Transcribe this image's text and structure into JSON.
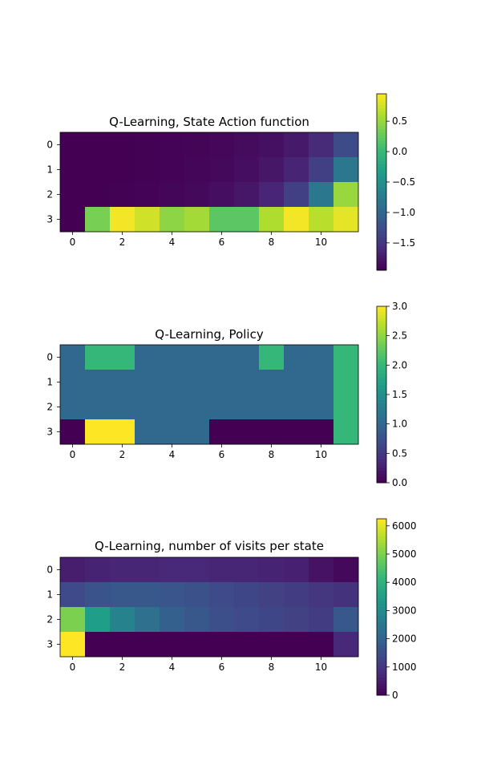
{
  "chart_data": [
    {
      "type": "heatmap",
      "title": "Q-Learning, State Action function",
      "colormap": "viridis",
      "x_ticks": [
        "0",
        "2",
        "4",
        "6",
        "8",
        "10"
      ],
      "y_ticks": [
        "0",
        "1",
        "2",
        "3"
      ],
      "colorbar_ticks": [
        "0.5",
        "0.0",
        "−0.5",
        "−1.0",
        "−1.5"
      ],
      "vmin": -1.95,
      "vmax": 0.95,
      "colorbar_tick_values": [
        0.5,
        0.0,
        -0.5,
        -1.0,
        -1.5
      ],
      "values": [
        [
          -1.95,
          -1.95,
          -1.95,
          -1.94,
          -1.93,
          -1.92,
          -1.9,
          -1.87,
          -1.83,
          -1.75,
          -1.6,
          -1.3
        ],
        [
          -1.95,
          -1.95,
          -1.95,
          -1.94,
          -1.93,
          -1.91,
          -1.88,
          -1.84,
          -1.78,
          -1.66,
          -1.4,
          -0.8
        ],
        [
          -1.95,
          -1.95,
          -1.94,
          -1.93,
          -1.91,
          -1.88,
          -1.84,
          -1.77,
          -1.65,
          -1.4,
          -0.8,
          0.5
        ],
        [
          -1.95,
          0.35,
          0.9,
          0.75,
          0.45,
          0.55,
          0.2,
          0.2,
          0.6,
          0.9,
          0.65,
          0.85
        ]
      ]
    },
    {
      "type": "heatmap",
      "title": "Q-Learning, Policy",
      "colormap": "viridis",
      "x_ticks": [
        "0",
        "2",
        "4",
        "6",
        "8",
        "10"
      ],
      "y_ticks": [
        "0",
        "1",
        "2",
        "3"
      ],
      "colorbar_ticks": [
        "3.0",
        "2.5",
        "2.0",
        "1.5",
        "1.0",
        "0.5",
        "0.0"
      ],
      "vmin": 0,
      "vmax": 3,
      "colorbar_tick_values": [
        3.0,
        2.5,
        2.0,
        1.5,
        1.0,
        0.5,
        0.0
      ],
      "values": [
        [
          1,
          2,
          2,
          1,
          1,
          1,
          1,
          1,
          2,
          1,
          1,
          2
        ],
        [
          1,
          1,
          1,
          1,
          1,
          1,
          1,
          1,
          1,
          1,
          1,
          2
        ],
        [
          1,
          1,
          1,
          1,
          1,
          1,
          1,
          1,
          1,
          1,
          1,
          2
        ],
        [
          0,
          3,
          3,
          1,
          1,
          1,
          0,
          0,
          0,
          0,
          0,
          2
        ]
      ]
    },
    {
      "type": "heatmap",
      "title": "Q-Learning, number of visits per state",
      "colormap": "viridis",
      "x_ticks": [
        "0",
        "2",
        "4",
        "6",
        "8",
        "10"
      ],
      "y_ticks": [
        "0",
        "1",
        "2",
        "3"
      ],
      "colorbar_ticks": [
        "6000",
        "5000",
        "4000",
        "3000",
        "2000",
        "1000",
        "0"
      ],
      "vmin": 0,
      "vmax": 6250,
      "colorbar_tick_values": [
        6000,
        5000,
        4000,
        3000,
        2000,
        1000,
        0
      ],
      "values": [
        [
          500,
          600,
          650,
          650,
          700,
          700,
          650,
          650,
          600,
          550,
          300,
          150
        ],
        [
          1400,
          1600,
          1700,
          1700,
          1650,
          1550,
          1400,
          1300,
          1200,
          1100,
          1000,
          900
        ],
        [
          5000,
          3500,
          2800,
          2300,
          1900,
          1700,
          1500,
          1400,
          1300,
          1200,
          1100,
          1700
        ],
        [
          6250,
          0,
          0,
          0,
          0,
          0,
          0,
          0,
          0,
          0,
          0,
          700
        ]
      ]
    }
  ]
}
